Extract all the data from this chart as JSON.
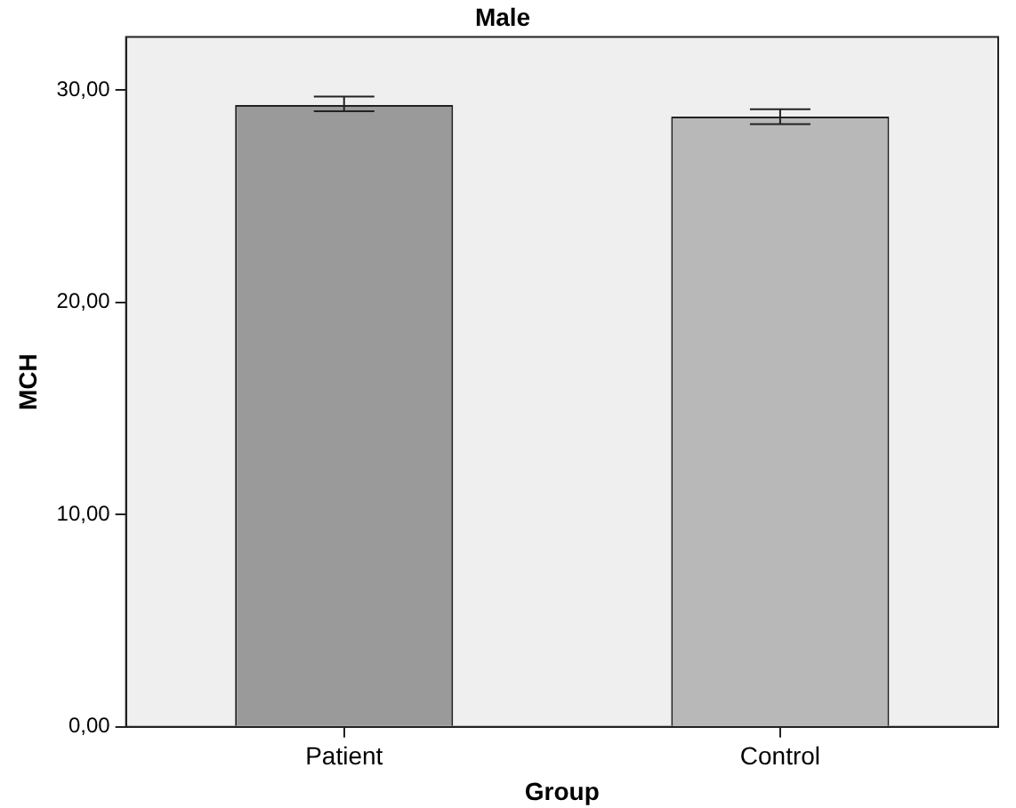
{
  "chart_data": {
    "type": "bar",
    "title": "Male",
    "xlabel": "Group",
    "ylabel": "MCH",
    "categories": [
      "Patient",
      "Control"
    ],
    "values": [
      29.3,
      28.75
    ],
    "errors": [
      [
        29.0,
        29.7
      ],
      [
        28.4,
        29.1
      ]
    ],
    "colors": [
      "#9a9a9a",
      "#b8b8b8"
    ],
    "ylim": [
      0,
      32.5
    ],
    "yticks": [
      {
        "value": 0,
        "label": "0,00"
      },
      {
        "value": 10,
        "label": "10,00"
      },
      {
        "value": 20,
        "label": "20,00"
      },
      {
        "value": 30,
        "label": "30,00"
      }
    ],
    "grid": false,
    "legend": false
  }
}
